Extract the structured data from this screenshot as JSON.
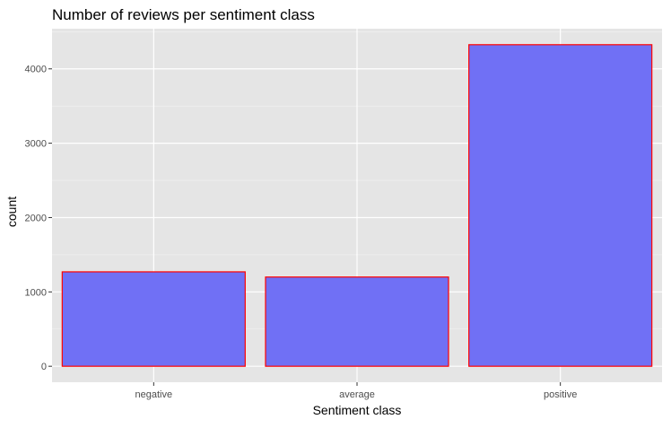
{
  "chart_data": {
    "type": "bar",
    "title": "Number of reviews per sentiment class",
    "xlabel": "Sentiment class",
    "ylabel": "count",
    "categories": [
      "negative",
      "average",
      "positive"
    ],
    "values": [
      1270,
      1200,
      4325
    ],
    "ylim": [
      -215,
      4540
    ],
    "yticks": [
      0,
      1000,
      2000,
      3000,
      4000
    ],
    "grid": true,
    "legend": "none",
    "colors": {
      "bar_fill": "#7070f5",
      "bar_outline": "#ff0000",
      "panel_background": "#e5e5e5",
      "grid_major": "#ffffff",
      "tick_text": "#4d4d4d"
    }
  }
}
